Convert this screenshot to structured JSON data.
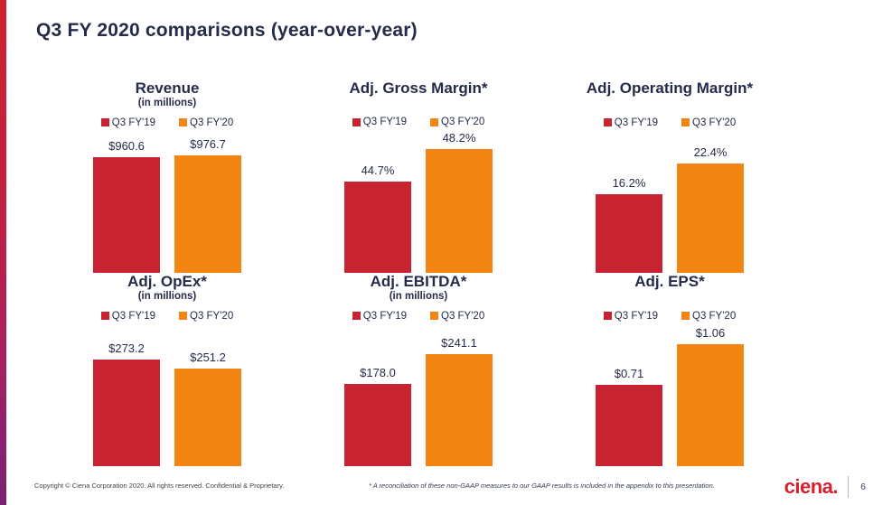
{
  "page": {
    "title": "Q3 FY 2020 comparisons (year-over-year)"
  },
  "footer": {
    "copyright": "Copyright © Ciena Corporation 2020. All rights reserved. Confidential & Proprietary.",
    "note": "* A reconciliation of these non-GAAP measures to our GAAP results is included in the appendix to this presentation.",
    "logo_text": "ciena.",
    "page_number": "6"
  },
  "colors": {
    "fy19": "#c72331",
    "fy20": "#f28511",
    "heading_text": "#252b49",
    "logo_red": "#d6202f",
    "strip_gradient_top": "#d0212f",
    "strip_gradient_bottom": "#7a2173"
  },
  "chart_data": [
    {
      "type": "bar",
      "title": "Revenue",
      "subtitle": "(in millions)",
      "categories": [
        "Q3 FY'19",
        "Q3 FY'20"
      ],
      "series": [
        {
          "name": "Q3 FY'19",
          "value": 960.6,
          "label": "$960.6",
          "color_key": "fy19"
        },
        {
          "name": "Q3 FY'20",
          "value": 976.7,
          "label": "$976.7",
          "color_key": "fy20"
        }
      ],
      "ylim": [
        0,
        1050
      ],
      "legend_position": "top",
      "grid": false
    },
    {
      "type": "bar",
      "title": "Adj. Gross Margin*",
      "subtitle": "",
      "categories": [
        "Q3 FY'19",
        "Q3 FY'20"
      ],
      "series": [
        {
          "name": "Q3 FY'19",
          "value": 44.7,
          "label": "44.7%",
          "color_key": "fy19"
        },
        {
          "name": "Q3 FY'20",
          "value": 48.2,
          "label": "48.2%",
          "color_key": "fy20"
        }
      ],
      "ylim": [
        35,
        48.5
      ],
      "legend_position": "top",
      "grid": false
    },
    {
      "type": "bar",
      "title": "Adj. Operating Margin*",
      "subtitle": "",
      "categories": [
        "Q3 FY'19",
        "Q3 FY'20"
      ],
      "series": [
        {
          "name": "Q3 FY'19",
          "value": 16.2,
          "label": "16.2%",
          "color_key": "fy19"
        },
        {
          "name": "Q3 FY'20",
          "value": 22.4,
          "label": "22.4%",
          "color_key": "fy20"
        }
      ],
      "ylim": [
        0,
        26
      ],
      "legend_position": "top",
      "grid": false
    },
    {
      "type": "bar",
      "title": "Adj. OpEx*",
      "subtitle": "(in millions)",
      "categories": [
        "Q3 FY'19",
        "Q3 FY'20"
      ],
      "series": [
        {
          "name": "Q3 FY'19",
          "value": 273.2,
          "label": "$273.2",
          "color_key": "fy19"
        },
        {
          "name": "Q3 FY'20",
          "value": 251.2,
          "label": "$251.2",
          "color_key": "fy20"
        }
      ],
      "ylim": [
        0,
        325
      ],
      "legend_position": "top",
      "grid": false
    },
    {
      "type": "bar",
      "title": "Adj. EBITDA*",
      "subtitle": "(in millions)",
      "categories": [
        "Q3 FY'19",
        "Q3 FY'20"
      ],
      "series": [
        {
          "name": "Q3 FY'19",
          "value": 178.0,
          "label": "$178.0",
          "color_key": "fy19"
        },
        {
          "name": "Q3 FY'20",
          "value": 241.1,
          "label": "$241.1",
          "color_key": "fy20"
        }
      ],
      "ylim": [
        0,
        273
      ],
      "legend_position": "top",
      "grid": false
    },
    {
      "type": "bar",
      "title": "Adj. EPS*",
      "subtitle": "",
      "categories": [
        "Q3 FY'19",
        "Q3 FY'20"
      ],
      "series": [
        {
          "name": "Q3 FY'19",
          "value": 0.71,
          "label": "$0.71",
          "color_key": "fy19"
        },
        {
          "name": "Q3 FY'20",
          "value": 1.06,
          "label": "$1.06",
          "color_key": "fy20"
        }
      ],
      "ylim": [
        0,
        1.1
      ],
      "legend_position": "top",
      "grid": false
    }
  ]
}
